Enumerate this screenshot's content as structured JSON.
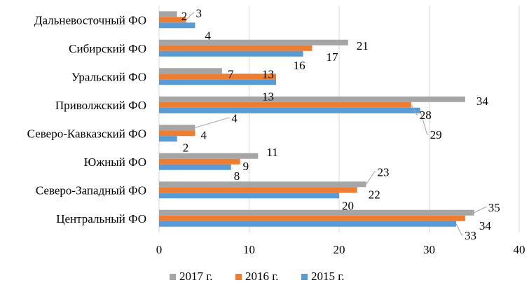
{
  "chart_data": {
    "type": "bar",
    "orientation": "horizontal",
    "categories": [
      "Центральный ФО",
      "Северо-Западный ФО",
      "Южный ФО",
      "Северо-Кавказский ФО",
      "Приволжский ФО",
      "Уральский ФО",
      "Сибирский ФО",
      "Дальневосточный ФО"
    ],
    "series": [
      {
        "name": "2015 г.",
        "color": "#5b9bd5",
        "values": [
          33,
          20,
          8,
          2,
          29,
          13,
          16,
          4
        ]
      },
      {
        "name": "2016 г.",
        "color": "#ed7d31",
        "values": [
          34,
          22,
          9,
          4,
          28,
          13,
          17,
          3
        ]
      },
      {
        "name": "2017 г.",
        "color": "#a5a5a5",
        "values": [
          35,
          23,
          11,
          4,
          34,
          7,
          21,
          2
        ]
      }
    ],
    "xlim": [
      0,
      40
    ],
    "x_ticks": [
      "0",
      "10",
      "20",
      "30",
      "40"
    ],
    "grid": true,
    "legend_position": "bottom",
    "legend_order": [
      "2017 г.",
      "2016 г.",
      "2015 г."
    ],
    "data_labels": true
  }
}
